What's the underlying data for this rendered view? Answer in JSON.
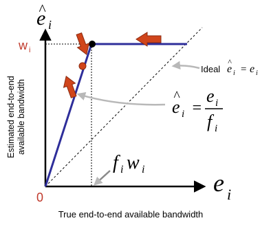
{
  "axes": {
    "y_symbol": {
      "base": "e",
      "hat": "^",
      "sub": "i"
    },
    "x_symbol": {
      "base": "e",
      "sub": "i"
    },
    "origin_label": "0",
    "w_label": {
      "base": "w",
      "sub": "i"
    },
    "y_axis_title_line1": "Estimated end-to-end",
    "y_axis_title_line2": "available bandwidth",
    "x_axis_title": "True end-to-end available bandwidth"
  },
  "annotations": {
    "ideal_prefix": "Ideal",
    "ideal_lhs": {
      "base": "e",
      "hat": "^",
      "sub": "i"
    },
    "ideal_eq": "=",
    "ideal_rhs": {
      "base": "e",
      "sub": "i"
    },
    "fraction_lhs": {
      "base": "e",
      "hat": "^",
      "sub": "i"
    },
    "fraction_eq": "=",
    "fraction_num": {
      "base": "e",
      "sub": "i"
    },
    "fraction_den": {
      "base": "f",
      "sub": "i"
    },
    "knee_label": {
      "f": "f",
      "f_sub": "i",
      "w": "w",
      "w_sub": "i"
    }
  },
  "colors": {
    "curve": "#2e2e9a",
    "axis": "#000000",
    "arrow_fill": "#d0451b",
    "arrow_stroke": "#8a2a10",
    "dot_red": "#d0451b",
    "dot_black": "#000000",
    "callout": "#b8b8b8",
    "origin_label": "#c0392b",
    "w_label": "#c0392b"
  }
}
